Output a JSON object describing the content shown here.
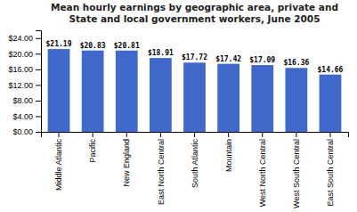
{
  "chart_data": {
    "type": "bar",
    "title": "Mean hourly earnings by geographic area, private and\nState and local government workers, June 2005",
    "categories": [
      "Middle Atlantic",
      "Pacific",
      "New England",
      "East North Central",
      "South Atlantic",
      "Mountain",
      "West North Central",
      "West South Central",
      "East South Central"
    ],
    "values": [
      21.19,
      20.83,
      20.81,
      18.91,
      17.72,
      17.42,
      17.09,
      16.36,
      14.66
    ],
    "value_labels": [
      "$21.19",
      "$20.83",
      "$20.81",
      "$18.91",
      "$17.72",
      "$17.42",
      "$17.09",
      "$16.36",
      "$14.66"
    ],
    "data_labels": true,
    "color": "#4169cc",
    "ylim": [
      0,
      26
    ],
    "yticks": [
      {
        "value": 0,
        "label": "$0.00"
      },
      {
        "value": 4,
        "label": "$4.00"
      },
      {
        "value": 8,
        "label": "$8.00"
      },
      {
        "value": 12,
        "label": "$12.00"
      },
      {
        "value": 16,
        "label": "$16.00"
      },
      {
        "value": 20,
        "label": "$20.00"
      },
      {
        "value": 24,
        "label": "$24.00"
      }
    ],
    "grid": false
  }
}
